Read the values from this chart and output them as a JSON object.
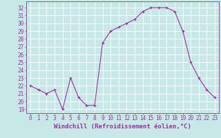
{
  "x": [
    0,
    1,
    2,
    3,
    4,
    5,
    6,
    7,
    8,
    9,
    10,
    11,
    12,
    13,
    14,
    15,
    16,
    17,
    18,
    19,
    20,
    21,
    22,
    23
  ],
  "y": [
    22.0,
    21.5,
    21.0,
    21.5,
    19.0,
    23.0,
    20.5,
    19.5,
    19.5,
    27.5,
    29.0,
    29.5,
    30.0,
    30.5,
    31.5,
    32.0,
    32.0,
    32.0,
    31.5,
    29.0,
    25.0,
    23.0,
    21.5,
    20.5
  ],
  "line_color": "#9b30a0",
  "marker": "+",
  "markersize": 3,
  "linewidth": 0.8,
  "markeredgewidth": 0.8,
  "xlabel": "Windchill (Refroidissement éolien,°C)",
  "xlabel_fontsize": 6.5,
  "ylabel_ticks": [
    19,
    20,
    21,
    22,
    23,
    24,
    25,
    26,
    27,
    28,
    29,
    30,
    31,
    32
  ],
  "ylim": [
    18.5,
    32.8
  ],
  "xlim": [
    -0.5,
    23.5
  ],
  "bg_color": "#c8e8e8",
  "grid_color": "#ffffff",
  "tick_label_color": "#9b30a0",
  "tick_label_fontsize": 5.5,
  "xlabel_color": "#9b30a0"
}
